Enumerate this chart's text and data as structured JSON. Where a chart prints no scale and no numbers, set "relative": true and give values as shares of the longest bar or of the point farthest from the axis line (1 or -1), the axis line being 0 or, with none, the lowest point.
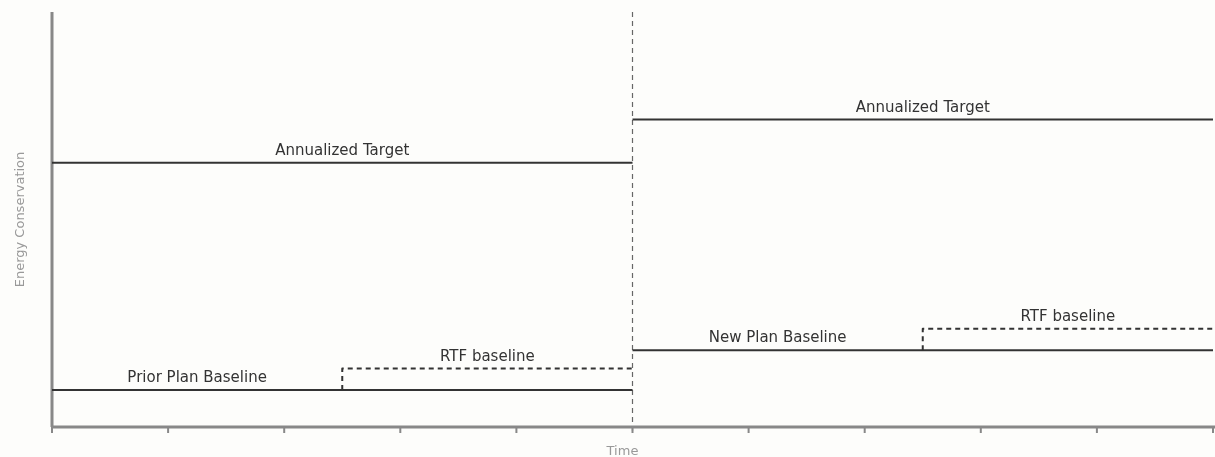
{
  "chart_data": {
    "type": "line",
    "relative": true,
    "xlabel": "Time",
    "ylabel": "Energy Conservation",
    "categories": [
      null,
      null,
      null,
      null,
      null,
      null,
      null,
      null,
      null,
      null,
      null,
      null,
      null,
      null,
      null,
      null,
      null,
      null,
      null,
      null,
      null
    ],
    "series": [
      {
        "name": "Annualized Target",
        "color": "#333333",
        "values": [
          0.86,
          0.86,
          0.86,
          0.86,
          0.86,
          0.86,
          0.86,
          0.86,
          0.86,
          0.86,
          0.86,
          null,
          null,
          null,
          null,
          null,
          null,
          null,
          null,
          null,
          null
        ],
        "line_style": "solid"
      },
      {
        "name": "Prior Plan Baseline",
        "color": "#333333",
        "values": [
          0.12,
          0.12,
          0.12,
          0.12,
          0.12,
          0.12,
          0.12,
          0.12,
          0.12,
          0.12,
          0.12,
          null,
          null,
          null,
          null,
          null,
          null,
          null,
          null,
          null,
          null
        ],
        "line_style": "solid"
      },
      {
        "name": "RTF baseline",
        "type": "step",
        "color": "#333333",
        "values": [
          null,
          null,
          null,
          null,
          null,
          0.12,
          0.19,
          0.19,
          0.19,
          0.19,
          0.19,
          null,
          null,
          null,
          null,
          null,
          null,
          null,
          null,
          null,
          null
        ],
        "line_style": "dashed"
      },
      {
        "name": "Annualized Target",
        "color": "#333333",
        "values": [
          null,
          null,
          null,
          null,
          null,
          null,
          null,
          null,
          null,
          null,
          1,
          1,
          1,
          1,
          1,
          1,
          1,
          1,
          1,
          1,
          1
        ],
        "line_style": "solid"
      },
      {
        "name": "New Plan Baseline",
        "color": "#333333",
        "values": [
          null,
          null,
          null,
          null,
          null,
          null,
          null,
          null,
          null,
          null,
          0.25,
          0.25,
          0.25,
          0.25,
          0.25,
          0.25,
          0.25,
          0.25,
          0.25,
          0.25,
          0.25
        ],
        "line_style": "solid"
      },
      {
        "name": "RTF baseline",
        "type": "step",
        "color": "#333333",
        "values": [
          null,
          null,
          null,
          null,
          null,
          null,
          null,
          null,
          null,
          null,
          null,
          null,
          null,
          null,
          null,
          0.25,
          0.32,
          0.32,
          0.32,
          0.32,
          0.32
        ],
        "line_style": "dashed"
      }
    ]
  }
}
